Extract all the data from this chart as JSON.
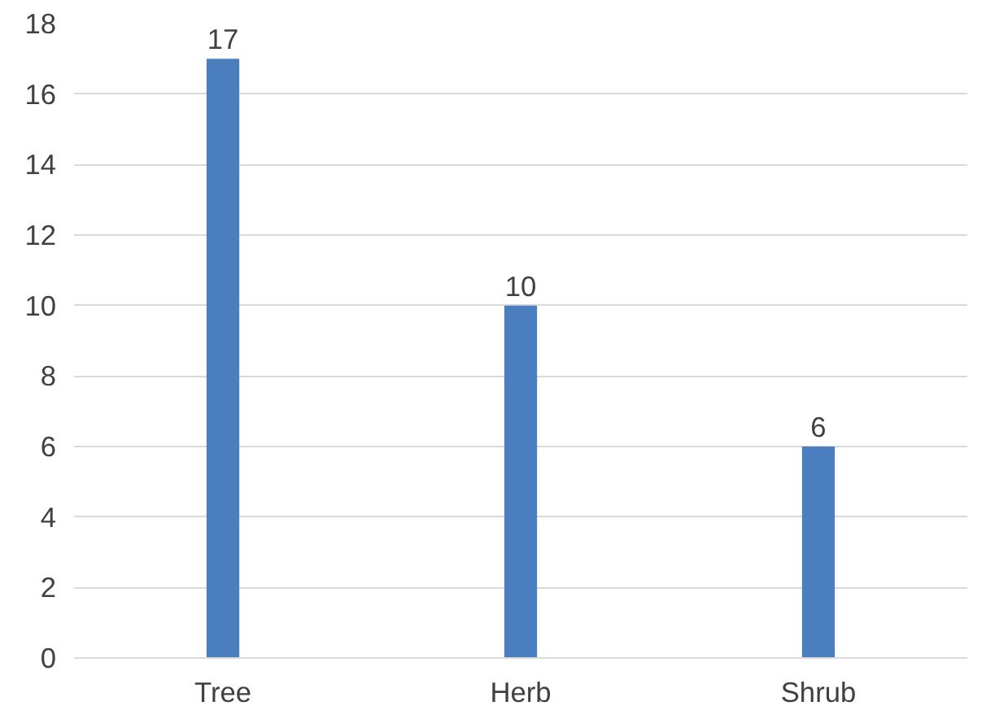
{
  "chart_data": {
    "type": "bar",
    "categories": [
      "Tree",
      "Herb",
      "Shrub"
    ],
    "values": [
      17,
      10,
      6
    ],
    "color": "#4a7ebf",
    "ylim": [
      0,
      18
    ],
    "yticks": [
      0,
      2,
      4,
      6,
      8,
      10,
      12,
      14,
      16,
      18
    ],
    "grid": "y",
    "data_labels": true
  }
}
